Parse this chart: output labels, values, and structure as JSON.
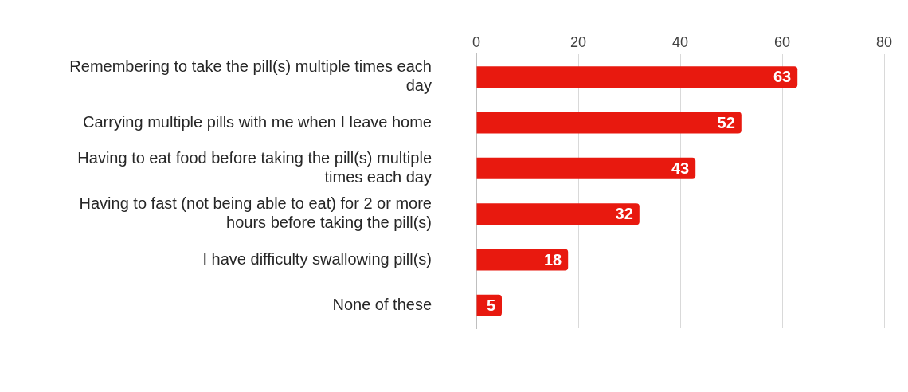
{
  "chart_data": {
    "type": "bar",
    "orientation": "horizontal",
    "categories": [
      "Remembering to take the pill(s) multiple times each day",
      "Carrying multiple pills with me when I leave home",
      "Having to eat food before taking the pill(s) multiple times each day",
      "Having to fast (not being able to eat) for 2 or more hours before taking the pill(s)",
      "I have difficulty swallowing pill(s)",
      "None of these"
    ],
    "values": [
      63,
      52,
      43,
      32,
      18,
      5
    ],
    "color": "#e8190f",
    "xlim": [
      0,
      80
    ],
    "xticks": [
      0,
      20,
      40,
      60,
      80
    ],
    "grid": "x",
    "data_labels": true,
    "legend": false
  }
}
